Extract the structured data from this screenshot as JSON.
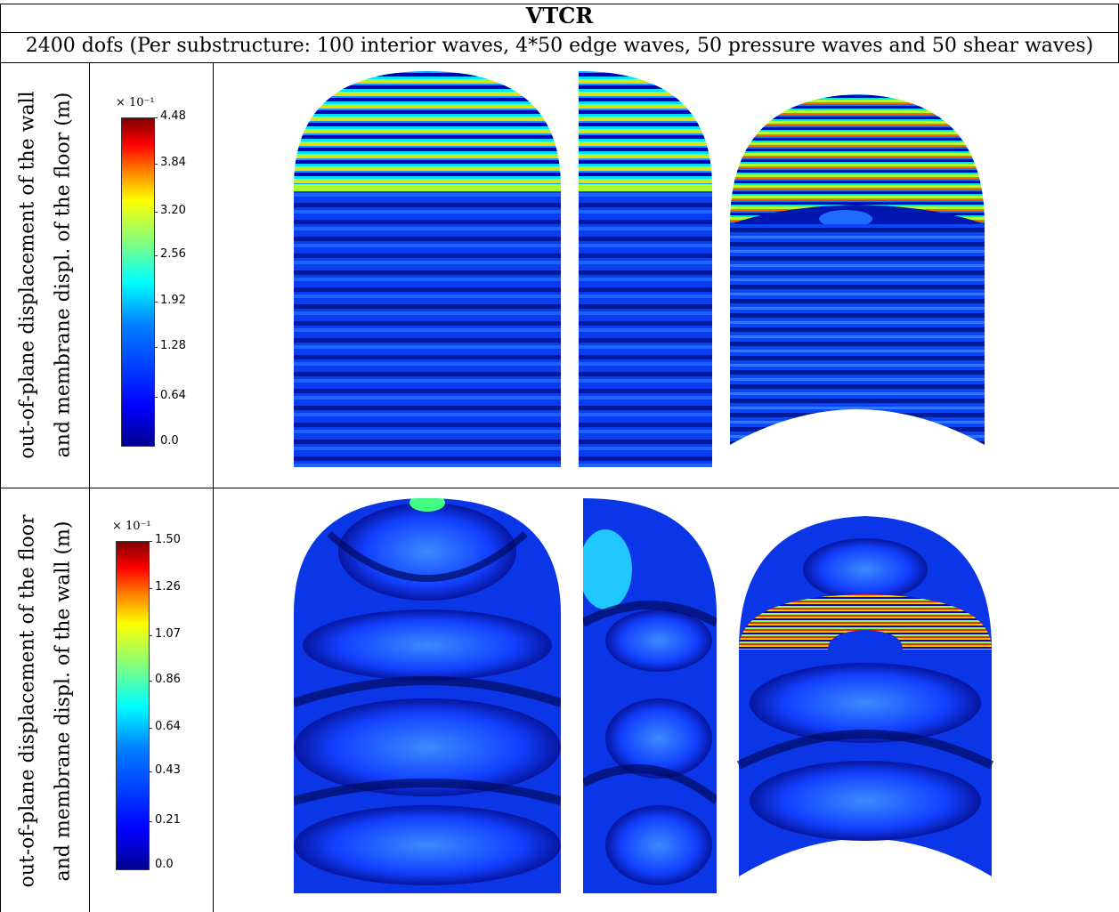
{
  "table": {
    "title": "VTCR",
    "subtitle": "2400 dofs (Per substructure: 100 interior waves, 4*50 edge waves, 50 pressure waves and 50 shear waves)"
  },
  "rows": [
    {
      "label_line1": "out-of-plane displacement of the wall",
      "label_line2": "and membrane displ.  of the floor (m)",
      "colorbar": {
        "multiplier": "× 10⁻¹",
        "ticks": [
          "4.48",
          "3.84",
          "3.20",
          "2.56",
          "1.92",
          "1.28",
          "0.64",
          "0.0"
        ]
      }
    },
    {
      "label_line1": "out-of-plane displacement of the floor",
      "label_line2": "and membrane displ.  of the wall (m)",
      "colorbar": {
        "multiplier": "× 10⁻¹",
        "ticks": [
          "1.50",
          "1.26",
          "1.07",
          "0.86",
          "0.64",
          "0.43",
          "0.21",
          "0.0"
        ]
      }
    }
  ],
  "colors": {
    "dark_blue": "#00008f",
    "blue": "#0033ff",
    "cyan": "#00ffff",
    "yellow": "#ffff00",
    "red": "#ff0000",
    "dark_red": "#800000"
  }
}
